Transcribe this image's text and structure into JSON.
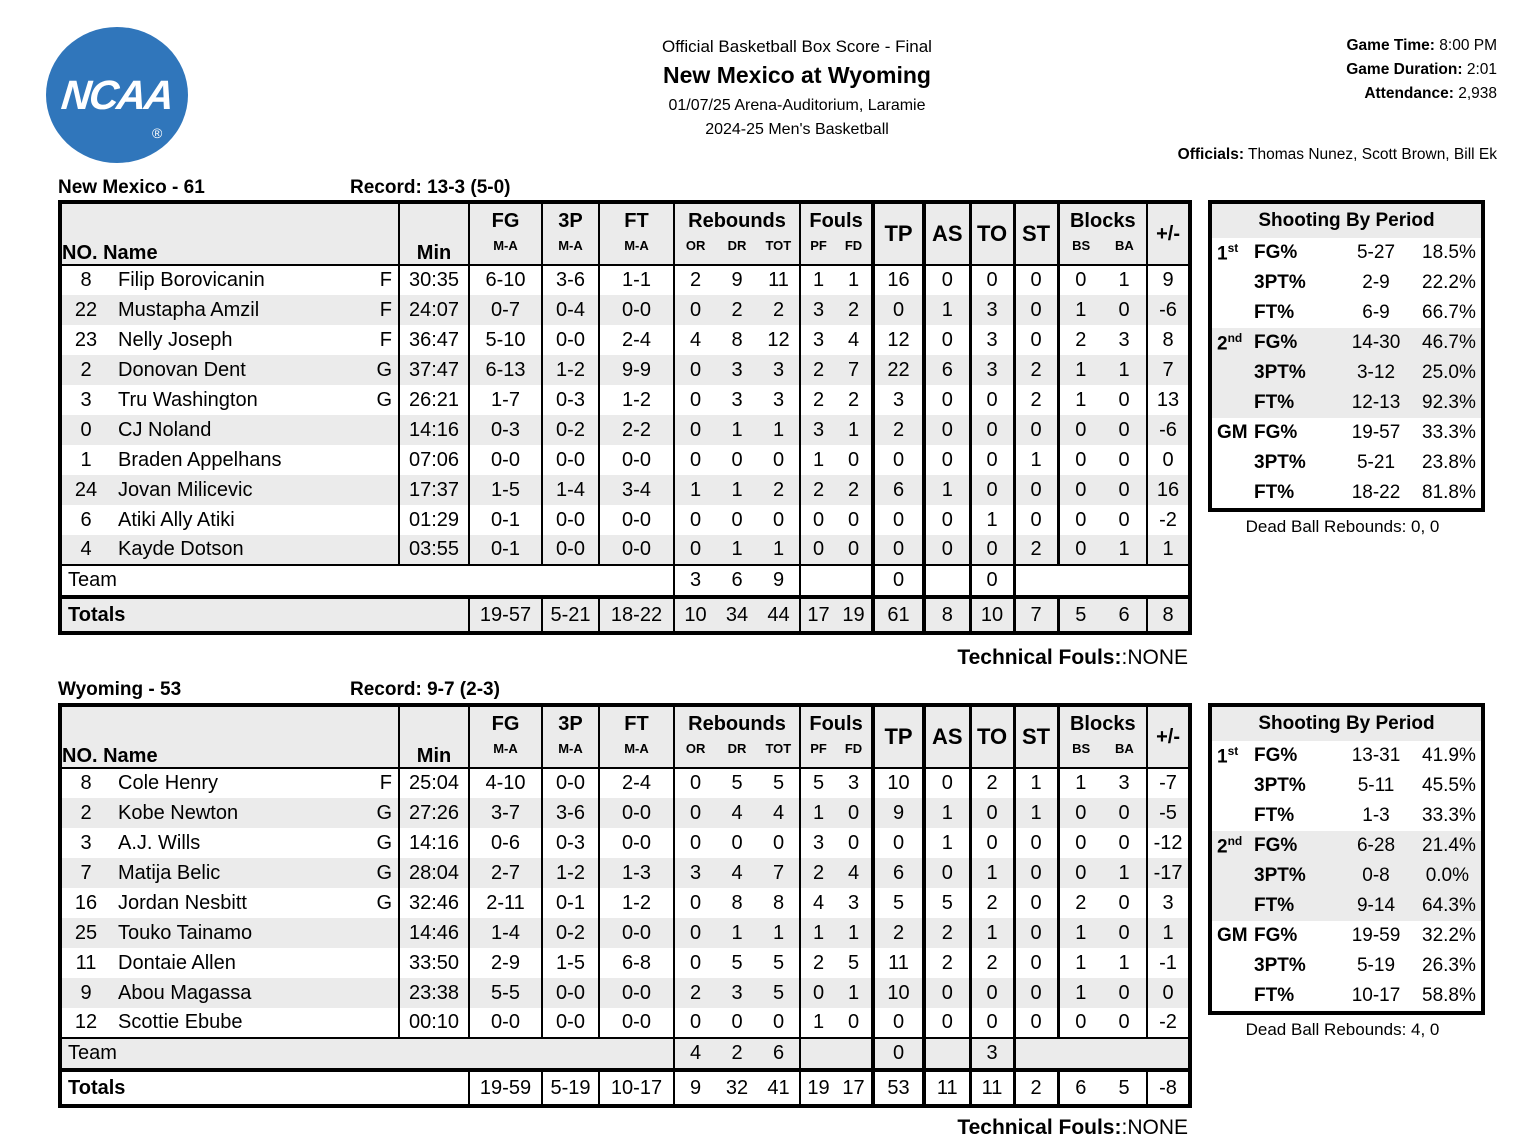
{
  "header": {
    "logo_text": "NCAA",
    "registered_mark": "®",
    "title": "Official Basketball Box Score - Final",
    "matchup": "New Mexico at Wyoming",
    "venue": "01/07/25 Arena-Auditorium, Laramie",
    "season": "2024-25 Men's Basketball",
    "game_time_label": "Game Time:",
    "game_time": "8:00 PM",
    "game_duration_label": "Game Duration:",
    "game_duration": "2:01",
    "attendance_label": "Attendance:",
    "attendance": "2,938",
    "officials_label": "Officials:",
    "officials": "Thomas Nunez, Scott Brown, Bill Ek"
  },
  "colors": {
    "logo_blue": "#3076bb",
    "row_gray": "#ebebeb",
    "border_black": "#000000"
  },
  "columns": {
    "no_name": "NO. Name",
    "min": "Min",
    "fg": "FG",
    "p3": "3P",
    "ft": "FT",
    "ma": "M-A",
    "rebounds": "Rebounds",
    "or": "OR",
    "dr": "DR",
    "tot": "TOT",
    "fouls": "Fouls",
    "pf": "PF",
    "fd": "FD",
    "tp": "TP",
    "as": "AS",
    "to": "TO",
    "st": "ST",
    "blocks": "Blocks",
    "bs": "BS",
    "ba": "BA",
    "pm": "+/-"
  },
  "teams": [
    {
      "name": "New Mexico - 61",
      "record": "Record: 13-3 (5-0)",
      "players": [
        {
          "no": "8",
          "name": "Filip Borovicanin",
          "pos": "F",
          "min": "30:35",
          "fg": "6-10",
          "p3": "3-6",
          "ft": "1-1",
          "or": "2",
          "dr": "9",
          "tot": "11",
          "pf": "1",
          "fd": "1",
          "tp": "16",
          "as": "0",
          "to": "0",
          "st": "0",
          "bs": "0",
          "ba": "1",
          "pm": "9"
        },
        {
          "no": "22",
          "name": "Mustapha Amzil",
          "pos": "F",
          "min": "24:07",
          "fg": "0-7",
          "p3": "0-4",
          "ft": "0-0",
          "or": "0",
          "dr": "2",
          "tot": "2",
          "pf": "3",
          "fd": "2",
          "tp": "0",
          "as": "1",
          "to": "3",
          "st": "0",
          "bs": "1",
          "ba": "0",
          "pm": "-6"
        },
        {
          "no": "23",
          "name": "Nelly Joseph",
          "pos": "F",
          "min": "36:47",
          "fg": "5-10",
          "p3": "0-0",
          "ft": "2-4",
          "or": "4",
          "dr": "8",
          "tot": "12",
          "pf": "3",
          "fd": "4",
          "tp": "12",
          "as": "0",
          "to": "3",
          "st": "0",
          "bs": "2",
          "ba": "3",
          "pm": "8"
        },
        {
          "no": "2",
          "name": "Donovan Dent",
          "pos": "G",
          "min": "37:47",
          "fg": "6-13",
          "p3": "1-2",
          "ft": "9-9",
          "or": "0",
          "dr": "3",
          "tot": "3",
          "pf": "2",
          "fd": "7",
          "tp": "22",
          "as": "6",
          "to": "3",
          "st": "2",
          "bs": "1",
          "ba": "1",
          "pm": "7"
        },
        {
          "no": "3",
          "name": "Tru Washington",
          "pos": "G",
          "min": "26:21",
          "fg": "1-7",
          "p3": "0-3",
          "ft": "1-2",
          "or": "0",
          "dr": "3",
          "tot": "3",
          "pf": "2",
          "fd": "2",
          "tp": "3",
          "as": "0",
          "to": "0",
          "st": "2",
          "bs": "1",
          "ba": "0",
          "pm": "13"
        },
        {
          "no": "0",
          "name": "CJ Noland",
          "pos": "",
          "min": "14:16",
          "fg": "0-3",
          "p3": "0-2",
          "ft": "2-2",
          "or": "0",
          "dr": "1",
          "tot": "1",
          "pf": "3",
          "fd": "1",
          "tp": "2",
          "as": "0",
          "to": "0",
          "st": "0",
          "bs": "0",
          "ba": "0",
          "pm": "-6"
        },
        {
          "no": "1",
          "name": "Braden Appelhans",
          "pos": "",
          "min": "07:06",
          "fg": "0-0",
          "p3": "0-0",
          "ft": "0-0",
          "or": "0",
          "dr": "0",
          "tot": "0",
          "pf": "1",
          "fd": "0",
          "tp": "0",
          "as": "0",
          "to": "0",
          "st": "1",
          "bs": "0",
          "ba": "0",
          "pm": "0"
        },
        {
          "no": "24",
          "name": "Jovan Milicevic",
          "pos": "",
          "min": "17:37",
          "fg": "1-5",
          "p3": "1-4",
          "ft": "3-4",
          "or": "1",
          "dr": "1",
          "tot": "2",
          "pf": "2",
          "fd": "2",
          "tp": "6",
          "as": "1",
          "to": "0",
          "st": "0",
          "bs": "0",
          "ba": "0",
          "pm": "16"
        },
        {
          "no": "6",
          "name": "Atiki Ally Atiki",
          "pos": "",
          "min": "01:29",
          "fg": "0-1",
          "p3": "0-0",
          "ft": "0-0",
          "or": "0",
          "dr": "0",
          "tot": "0",
          "pf": "0",
          "fd": "0",
          "tp": "0",
          "as": "0",
          "to": "1",
          "st": "0",
          "bs": "0",
          "ba": "0",
          "pm": "-2"
        },
        {
          "no": "4",
          "name": "Kayde Dotson",
          "pos": "",
          "min": "03:55",
          "fg": "0-1",
          "p3": "0-0",
          "ft": "0-0",
          "or": "0",
          "dr": "1",
          "tot": "1",
          "pf": "0",
          "fd": "0",
          "tp": "0",
          "as": "0",
          "to": "0",
          "st": "2",
          "bs": "0",
          "ba": "1",
          "pm": "1"
        }
      ],
      "team_row": {
        "label": "Team",
        "or": "3",
        "dr": "6",
        "tot": "9",
        "tp": "0",
        "to": "0"
      },
      "totals": {
        "label": "Totals",
        "fg": "19-57",
        "p3": "5-21",
        "ft": "18-22",
        "or": "10",
        "dr": "34",
        "tot": "44",
        "pf": "17",
        "fd": "19",
        "tp": "61",
        "as": "8",
        "to": "10",
        "st": "7",
        "bs": "5",
        "ba": "6",
        "pm": "8"
      },
      "technical_label": "Technical Fouls:",
      "technical_value": ":NONE",
      "shooting": {
        "title": "Shooting By Period",
        "dead_ball": "Dead Ball Rebounds: 0, 0",
        "sections": [
          {
            "period": "1",
            "sup": "st",
            "rows": [
              [
                "FG%",
                "5-27",
                "18.5%"
              ],
              [
                "3PT%",
                "2-9",
                "22.2%"
              ],
              [
                "FT%",
                "6-9",
                "66.7%"
              ]
            ]
          },
          {
            "period": "2",
            "sup": "nd",
            "rows": [
              [
                "FG%",
                "14-30",
                "46.7%"
              ],
              [
                "3PT%",
                "3-12",
                "25.0%"
              ],
              [
                "FT%",
                "12-13",
                "92.3%"
              ]
            ]
          },
          {
            "period": "GM",
            "sup": "",
            "rows": [
              [
                "FG%",
                "19-57",
                "33.3%"
              ],
              [
                "3PT%",
                "5-21",
                "23.8%"
              ],
              [
                "FT%",
                "18-22",
                "81.8%"
              ]
            ]
          }
        ]
      }
    },
    {
      "name": "Wyoming - 53",
      "record": "Record: 9-7 (2-3)",
      "players": [
        {
          "no": "8",
          "name": "Cole Henry",
          "pos": "F",
          "min": "25:04",
          "fg": "4-10",
          "p3": "0-0",
          "ft": "2-4",
          "or": "0",
          "dr": "5",
          "tot": "5",
          "pf": "5",
          "fd": "3",
          "tp": "10",
          "as": "0",
          "to": "2",
          "st": "1",
          "bs": "1",
          "ba": "3",
          "pm": "-7"
        },
        {
          "no": "2",
          "name": "Kobe Newton",
          "pos": "G",
          "min": "27:26",
          "fg": "3-7",
          "p3": "3-6",
          "ft": "0-0",
          "or": "0",
          "dr": "4",
          "tot": "4",
          "pf": "1",
          "fd": "0",
          "tp": "9",
          "as": "1",
          "to": "0",
          "st": "1",
          "bs": "0",
          "ba": "0",
          "pm": "-5"
        },
        {
          "no": "3",
          "name": "A.J. Wills",
          "pos": "G",
          "min": "14:16",
          "fg": "0-6",
          "p3": "0-3",
          "ft": "0-0",
          "or": "0",
          "dr": "0",
          "tot": "0",
          "pf": "3",
          "fd": "0",
          "tp": "0",
          "as": "1",
          "to": "0",
          "st": "0",
          "bs": "0",
          "ba": "0",
          "pm": "-12"
        },
        {
          "no": "7",
          "name": "Matija Belic",
          "pos": "G",
          "min": "28:04",
          "fg": "2-7",
          "p3": "1-2",
          "ft": "1-3",
          "or": "3",
          "dr": "4",
          "tot": "7",
          "pf": "2",
          "fd": "4",
          "tp": "6",
          "as": "0",
          "to": "1",
          "st": "0",
          "bs": "0",
          "ba": "1",
          "pm": "-17"
        },
        {
          "no": "16",
          "name": "Jordan Nesbitt",
          "pos": "G",
          "min": "32:46",
          "fg": "2-11",
          "p3": "0-1",
          "ft": "1-2",
          "or": "0",
          "dr": "8",
          "tot": "8",
          "pf": "4",
          "fd": "3",
          "tp": "5",
          "as": "5",
          "to": "2",
          "st": "0",
          "bs": "2",
          "ba": "0",
          "pm": "3"
        },
        {
          "no": "25",
          "name": "Touko Tainamo",
          "pos": "",
          "min": "14:46",
          "fg": "1-4",
          "p3": "0-2",
          "ft": "0-0",
          "or": "0",
          "dr": "1",
          "tot": "1",
          "pf": "1",
          "fd": "1",
          "tp": "2",
          "as": "2",
          "to": "1",
          "st": "0",
          "bs": "1",
          "ba": "0",
          "pm": "1"
        },
        {
          "no": "11",
          "name": "Dontaie Allen",
          "pos": "",
          "min": "33:50",
          "fg": "2-9",
          "p3": "1-5",
          "ft": "6-8",
          "or": "0",
          "dr": "5",
          "tot": "5",
          "pf": "2",
          "fd": "5",
          "tp": "11",
          "as": "2",
          "to": "2",
          "st": "0",
          "bs": "1",
          "ba": "1",
          "pm": "-1"
        },
        {
          "no": "9",
          "name": "Abou Magassa",
          "pos": "",
          "min": "23:38",
          "fg": "5-5",
          "p3": "0-0",
          "ft": "0-0",
          "or": "2",
          "dr": "3",
          "tot": "5",
          "pf": "0",
          "fd": "1",
          "tp": "10",
          "as": "0",
          "to": "0",
          "st": "0",
          "bs": "1",
          "ba": "0",
          "pm": "0"
        },
        {
          "no": "12",
          "name": "Scottie Ebube",
          "pos": "",
          "min": "00:10",
          "fg": "0-0",
          "p3": "0-0",
          "ft": "0-0",
          "or": "0",
          "dr": "0",
          "tot": "0",
          "pf": "1",
          "fd": "0",
          "tp": "0",
          "as": "0",
          "to": "0",
          "st": "0",
          "bs": "0",
          "ba": "0",
          "pm": "-2"
        }
      ],
      "team_row": {
        "label": "Team",
        "or": "4",
        "dr": "2",
        "tot": "6",
        "tp": "0",
        "to": "3"
      },
      "totals": {
        "label": "Totals",
        "fg": "19-59",
        "p3": "5-19",
        "ft": "10-17",
        "or": "9",
        "dr": "32",
        "tot": "41",
        "pf": "19",
        "fd": "17",
        "tp": "53",
        "as": "11",
        "to": "11",
        "st": "2",
        "bs": "6",
        "ba": "5",
        "pm": "-8"
      },
      "technical_label": "Technical Fouls:",
      "technical_value": ":NONE",
      "shooting": {
        "title": "Shooting By Period",
        "dead_ball": "Dead Ball Rebounds: 4, 0",
        "sections": [
          {
            "period": "1",
            "sup": "st",
            "rows": [
              [
                "FG%",
                "13-31",
                "41.9%"
              ],
              [
                "3PT%",
                "5-11",
                "45.5%"
              ],
              [
                "FT%",
                "1-3",
                "33.3%"
              ]
            ]
          },
          {
            "period": "2",
            "sup": "nd",
            "rows": [
              [
                "FG%",
                "6-28",
                "21.4%"
              ],
              [
                "3PT%",
                "0-8",
                "0.0%"
              ],
              [
                "FT%",
                "9-14",
                "64.3%"
              ]
            ]
          },
          {
            "period": "GM",
            "sup": "",
            "rows": [
              [
                "FG%",
                "19-59",
                "32.2%"
              ],
              [
                "3PT%",
                "5-19",
                "26.3%"
              ],
              [
                "FT%",
                "10-17",
                "58.8%"
              ]
            ]
          }
        ]
      }
    }
  ]
}
